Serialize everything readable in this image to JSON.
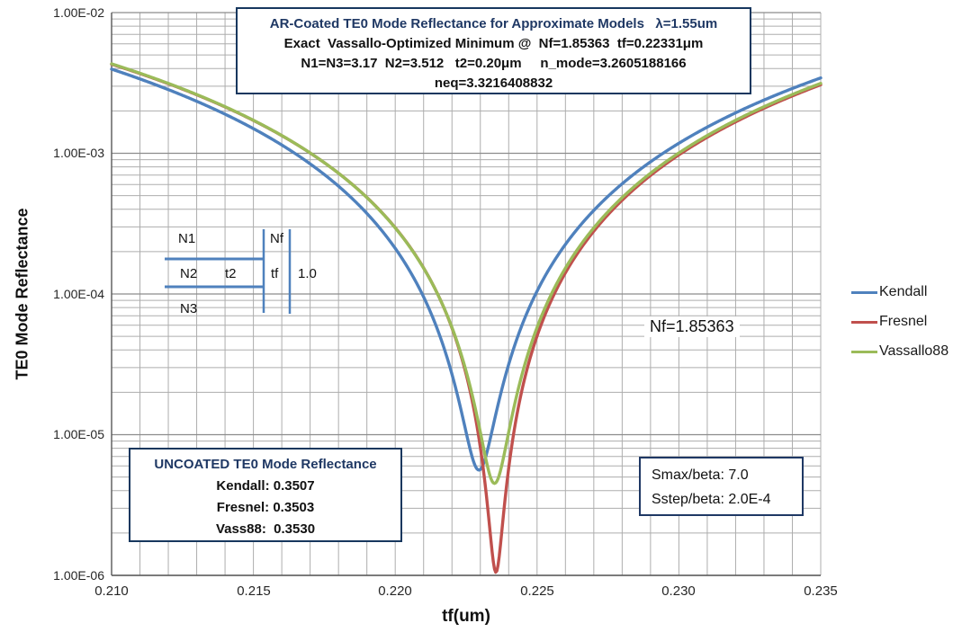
{
  "chart": {
    "title_box": {
      "lines": [
        "AR-Coated TE0 Mode Reflectance for Approximate Models   λ=1.55um",
        "Exact  Vassallo-Optimized Minimum @  Nf=1.85363  tf=0.22331μm",
        "N1=N3=3.17  N2=3.512   t2=0.20μm     n_mode=3.2605188166",
        "neq=3.3216408832"
      ]
    },
    "y_axis": {
      "label": "TE0 Mode Reflectance",
      "ticks": [
        "1.00E-02",
        "1.00E-03",
        "1.00E-04",
        "1.00E-05",
        "1.00E-06"
      ]
    },
    "x_axis": {
      "label": "tf(um)",
      "ticks": [
        "0.210",
        "0.215",
        "0.220",
        "0.225",
        "0.230",
        "0.235"
      ]
    },
    "annotations": {
      "nf_label": "Nf=1.85363",
      "smax_box": {
        "lines": [
          "Smax/beta: 7.0",
          "Sstep/beta: 2.0E-4"
        ]
      },
      "uncoated_box": {
        "header": "UNCOATED TE0 Mode Reflectance",
        "lines": [
          "Kendall: 0.3507",
          "Fresnel: 0.3503",
          "Vass88:  0.3530"
        ]
      }
    },
    "inset_diagram": {
      "labels": {
        "n1": "N1",
        "n2": "N2",
        "t2": "t2",
        "n3": "N3",
        "nf": "Nf",
        "tf": "tf",
        "right_index": "1.0"
      },
      "line_color": "#4F81BD"
    }
  },
  "chart_data": {
    "type": "line",
    "title": "AR-Coated TE0 Mode Reflectance for Approximate Models λ=1.55um",
    "xlabel": "tf(um)",
    "ylabel": "TE0 Mode Reflectance",
    "x_range": [
      0.21,
      0.235
    ],
    "y_range": [
      1e-06,
      0.01
    ],
    "y_scale": "log",
    "x_minor_step": 0.001,
    "x_major_step": 0.005,
    "grid": true,
    "legend_position": "right-outside",
    "colors": {
      "grid_minor": "#ADADAD",
      "grid_major": "#8C8C8C",
      "axis": "#595959"
    },
    "series": [
      {
        "name": "Kendall",
        "color": "#4F81BD",
        "model": {
          "type": "quadratic",
          "a": 23.6,
          "x0": 0.22295,
          "rmin": 5.6e-06
        },
        "minimum": [
          0.22295,
          5.6e-06
        ],
        "points": [
          [
            0.21,
            0.00396
          ],
          [
            0.2125,
            0.00258
          ],
          [
            0.215,
            0.00149
          ],
          [
            0.2175,
            0.000701
          ],
          [
            0.22,
            0.000211
          ],
          [
            0.2225,
            1.04e-05
          ],
          [
            0.22295,
            5.6e-06
          ],
          [
            0.225,
            0.000105
          ],
          [
            0.2275,
            0.000489
          ],
          [
            0.23,
            0.00117
          ],
          [
            0.2325,
            0.00215
          ],
          [
            0.235,
            0.00343
          ]
        ]
      },
      {
        "name": "Fresnel",
        "color": "#C0504D",
        "model": {
          "type": "quadratic",
          "a": 23.4,
          "x0": 0.22355,
          "rmin": 1.05e-06
        },
        "minimum": [
          0.22355,
          1.05e-06
        ],
        "points": [
          [
            0.21,
            0.0043
          ],
          [
            0.2125,
            0.00286
          ],
          [
            0.215,
            0.00171
          ],
          [
            0.2175,
            0.000857
          ],
          [
            0.22,
            0.000295
          ],
          [
            0.2225,
            2.69e-05
          ],
          [
            0.22355,
            1.05e-06
          ],
          [
            0.225,
            5e-05
          ],
          [
            0.2275,
            0.000365
          ],
          [
            0.23,
            0.000973
          ],
          [
            0.2325,
            0.00187
          ],
          [
            0.235,
            0.00307
          ]
        ]
      },
      {
        "name": "Vassallo88",
        "color": "#9BBB59",
        "model": {
          "type": "quadratic",
          "a": 23.7,
          "x0": 0.2235,
          "rmin": 4.5e-06
        },
        "minimum": [
          0.2235,
          4.5e-06
        ],
        "points": [
          [
            0.21,
            0.00432
          ],
          [
            0.2125,
            0.00287
          ],
          [
            0.215,
            0.00171
          ],
          [
            0.2175,
            0.000853
          ],
          [
            0.22,
            0.000295
          ],
          [
            0.2225,
            2.82e-05
          ],
          [
            0.2235,
            4.5e-06
          ],
          [
            0.225,
            5.78e-05
          ],
          [
            0.2275,
            0.000379
          ],
          [
            0.23,
            0.001
          ],
          [
            0.2325,
            0.00192
          ],
          [
            0.235,
            0.00313
          ]
        ]
      }
    ],
    "annotations": [
      {
        "text": "Nf=1.85363",
        "x": 0.2288,
        "y": 0.00016
      },
      {
        "text": "Smax/beta: 7.0"
      },
      {
        "text": "Sstep/beta: 2.0E-4"
      },
      {
        "text": "UNCOATED TE0 Mode Reflectance: Kendall 0.3507, Fresnel 0.3503, Vass88 0.3530"
      }
    ]
  }
}
